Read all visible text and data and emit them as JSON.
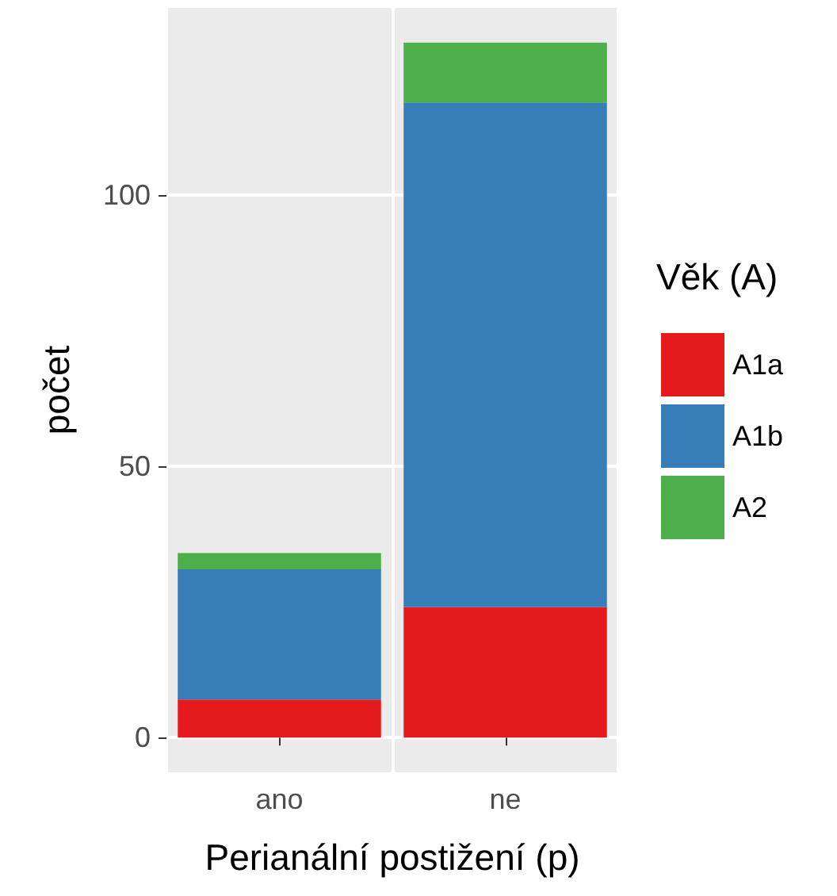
{
  "chart_data": {
    "type": "bar",
    "stacked": true,
    "xlabel": "Perianální postižení (p)",
    "ylabel": "počet",
    "legend_title": "Věk (A)",
    "legend": "right",
    "grid": true,
    "categories": [
      "ano",
      "ne"
    ],
    "series": [
      {
        "name": "A1a",
        "color": "#e41a1c",
        "values": [
          7,
          24
        ]
      },
      {
        "name": "A1b",
        "color": "#377eb8",
        "values": [
          24,
          93
        ]
      },
      {
        "name": "A2",
        "color": "#4daf4a",
        "values": [
          3,
          11
        ]
      }
    ],
    "ylim": [
      -6.4,
      134.4
    ],
    "yticks": [
      0,
      50,
      100
    ]
  }
}
